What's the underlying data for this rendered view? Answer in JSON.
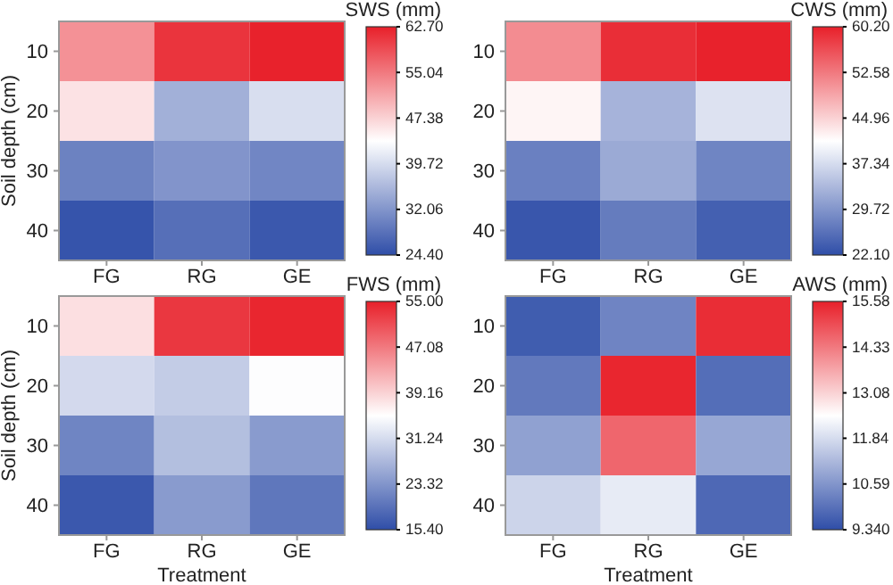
{
  "chart_data": [
    {
      "type": "heatmap",
      "categories": [
        "FG",
        "RG",
        "GE"
      ],
      "y_categories": [
        "10",
        "20",
        "30",
        "40"
      ],
      "ylabel": "Soil depth (cm)",
      "clabel": "SWS (mm)",
      "clim": [
        24.4,
        62.7
      ],
      "cticks": [
        {
          "value": 24.4,
          "label": "24.40"
        },
        {
          "value": 32.06,
          "label": "32.06"
        },
        {
          "value": 39.72,
          "label": "39.72"
        },
        {
          "value": 47.38,
          "label": "47.38"
        },
        {
          "value": 55.04,
          "label": "55.04"
        },
        {
          "value": 62.7,
          "label": "62.70"
        }
      ],
      "cells": [
        [
          53,
          61,
          62.5
        ],
        [
          46,
          35,
          40
        ],
        [
          30,
          32,
          30.5
        ],
        [
          25,
          28,
          25.5
        ]
      ]
    },
    {
      "type": "heatmap",
      "categories": [
        "FG",
        "RG",
        "GE"
      ],
      "y_categories": [
        "10",
        "20",
        "30",
        "40"
      ],
      "clabel": "CWS (mm)",
      "clim": [
        22.1,
        60.2
      ],
      "cticks": [
        {
          "value": 22.1,
          "label": "22.10"
        },
        {
          "value": 29.72,
          "label": "29.72"
        },
        {
          "value": 37.34,
          "label": "37.34"
        },
        {
          "value": 44.96,
          "label": "44.96"
        },
        {
          "value": 52.58,
          "label": "52.58"
        },
        {
          "value": 60.2,
          "label": "60.20"
        }
      ],
      "cells": [
        [
          51,
          59,
          60
        ],
        [
          42,
          33,
          38
        ],
        [
          27.5,
          32,
          28
        ],
        [
          23,
          27,
          24
        ]
      ]
    },
    {
      "type": "heatmap",
      "categories": [
        "FG",
        "RG",
        "GE"
      ],
      "y_categories": [
        "10",
        "20",
        "30",
        "40"
      ],
      "ylabel": "Soil depth (cm)",
      "xlabel": "Treatment",
      "clabel": "FWS (mm)",
      "clim": [
        15.4,
        55
      ],
      "cticks": [
        {
          "value": 15.4,
          "label": "15.40"
        },
        {
          "value": 23.32,
          "label": "23.32"
        },
        {
          "value": 31.24,
          "label": "31.24"
        },
        {
          "value": 39.16,
          "label": "39.16"
        },
        {
          "value": 47.08,
          "label": "47.08"
        },
        {
          "value": 55,
          "label": "55.00"
        }
      ],
      "cells": [
        [
          38,
          53,
          54.5
        ],
        [
          31,
          29.5,
          35
        ],
        [
          21.5,
          28,
          24
        ],
        [
          16.5,
          24,
          20
        ]
      ]
    },
    {
      "type": "heatmap",
      "categories": [
        "FG",
        "RG",
        "GE"
      ],
      "y_categories": [
        "10",
        "20",
        "30",
        "40"
      ],
      "xlabel": "Treatment",
      "clabel": "AWS (mm)",
      "clim": [
        9.34,
        15.58
      ],
      "cticks": [
        {
          "value": 9.34,
          "label": "9.340"
        },
        {
          "value": 10.59,
          "label": "10.59"
        },
        {
          "value": 11.84,
          "label": "11.84"
        },
        {
          "value": 13.08,
          "label": "13.08"
        },
        {
          "value": 14.33,
          "label": "14.33"
        },
        {
          "value": 15.58,
          "label": "15.58"
        }
      ],
      "cells": [
        [
          9.6,
          10.3,
          15.4
        ],
        [
          10.1,
          15.5,
          9.9
        ],
        [
          10.8,
          14.6,
          10.9
        ],
        [
          11.7,
          12.1,
          9.8
        ]
      ]
    }
  ]
}
